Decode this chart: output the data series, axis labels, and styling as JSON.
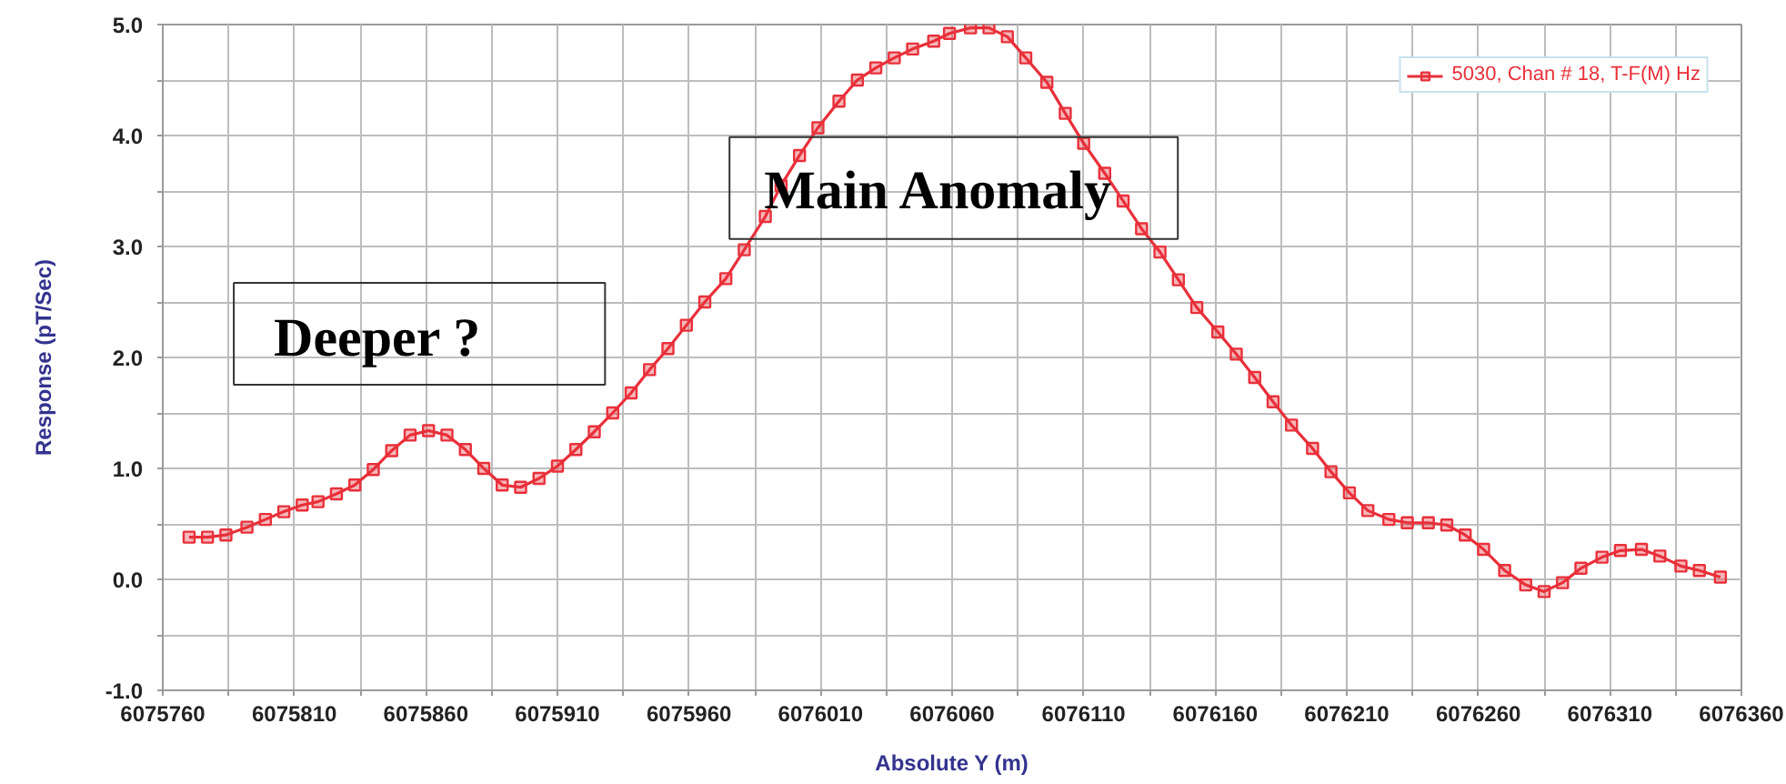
{
  "chart_data": {
    "type": "line",
    "xlabel": "Absolute Y (m)",
    "ylabel": "Response (pT/Sec)",
    "annotations": [
      "Deeper ?",
      "Main Anomaly"
    ],
    "x": [
      6075770,
      6075777,
      6075784,
      6075792,
      6075799,
      6075806,
      6075813,
      6075819,
      6075826,
      6075833,
      6075840,
      6075847,
      6075854,
      6075861,
      6075868,
      6075875,
      6075882,
      6075889,
      6075896,
      6075903,
      6075910,
      6075917,
      6075924,
      6075931,
      6075938,
      6075945,
      6075952,
      6075959,
      6075966,
      6075974,
      6075981,
      6075989,
      6075995,
      6076002,
      6076009,
      6076017,
      6076024,
      6076031,
      6076038,
      6076045,
      6076053,
      6076059,
      6076067,
      6076074,
      6076081,
      6076088,
      6076096,
      6076103,
      6076110,
      6076118,
      6076125,
      6076132,
      6076139,
      6076146,
      6076153,
      6076161,
      6076168,
      6076175,
      6076182,
      6076189,
      6076197,
      6076204,
      6076211,
      6076218,
      6076226,
      6076233,
      6076241,
      6076248,
      6076255,
      6076262,
      6076270,
      6076278,
      6076285,
      6076292,
      6076299,
      6076307,
      6076314,
      6076322,
      6076329,
      6076337,
      6076344,
      6076352
    ],
    "series": [
      {
        "name": "5030, Chan # 18, T-F(M) Hz",
        "color": "#e8303a",
        "values": [
          0.38,
          0.38,
          0.4,
          0.47,
          0.54,
          0.61,
          0.67,
          0.7,
          0.77,
          0.85,
          0.99,
          1.16,
          1.3,
          1.34,
          1.3,
          1.17,
          1.0,
          0.85,
          0.83,
          0.91,
          1.02,
          1.17,
          1.33,
          1.5,
          1.68,
          1.89,
          2.08,
          2.29,
          2.5,
          2.71,
          2.97,
          3.27,
          3.55,
          3.82,
          4.07,
          4.31,
          4.5,
          4.61,
          4.7,
          4.78,
          4.85,
          4.92,
          4.97,
          4.97,
          4.89,
          4.7,
          4.48,
          4.2,
          3.93,
          3.66,
          3.41,
          3.16,
          2.95,
          2.7,
          2.45,
          2.23,
          2.03,
          1.82,
          1.6,
          1.39,
          1.18,
          0.97,
          0.78,
          0.62,
          0.54,
          0.51,
          0.51,
          0.49,
          0.4,
          0.27,
          0.08,
          -0.05,
          -0.11,
          -0.03,
          0.1,
          0.2,
          0.26,
          0.27,
          0.21,
          0.12,
          0.08,
          0.02
        ]
      }
    ],
    "xlim": [
      6075760,
      6076360
    ],
    "ylim": [
      -1.0,
      5.0
    ],
    "xticks": [
      6075760,
      {
        "value": 6075785,
        "label": null
      },
      6075810,
      {
        "value": 6075835,
        "label": null
      },
      6075860,
      {
        "value": 6075885,
        "label": null
      },
      6075910,
      {
        "value": 6075935,
        "label": null
      },
      6075960,
      {
        "value": 6075985,
        "label": null
      },
      6076010,
      {
        "value": 6076035,
        "label": null
      },
      6076060,
      {
        "value": 6076085,
        "label": null
      },
      6076110,
      {
        "value": 6076135,
        "label": null
      },
      6076160,
      {
        "value": 6076185,
        "label": null
      },
      6076210,
      {
        "value": 6076235,
        "label": null
      },
      6076260,
      {
        "value": 6076285,
        "label": null
      },
      6076310,
      {
        "value": 6076335,
        "label": null
      },
      6076360
    ],
    "yticks": [
      {
        "value": -1,
        "label": "-1.0"
      },
      {
        "value": -0.5,
        "label": null
      },
      {
        "value": 0,
        "label": "0.0"
      },
      {
        "value": 0.5,
        "label": null
      },
      {
        "value": 1,
        "label": "1.0"
      },
      {
        "value": 1.5,
        "label": null
      },
      {
        "value": 2,
        "label": "2.0"
      },
      {
        "value": 2.5,
        "label": null
      },
      {
        "value": 3,
        "label": "3.0"
      },
      {
        "value": 3.5,
        "label": null
      },
      {
        "value": 4,
        "label": "4.0"
      },
      {
        "value": 4.5,
        "label": null
      },
      {
        "value": 5,
        "label": "5.0"
      }
    ],
    "grid": true,
    "legend": "top right",
    "marker": "square",
    "line_style": "solid"
  }
}
